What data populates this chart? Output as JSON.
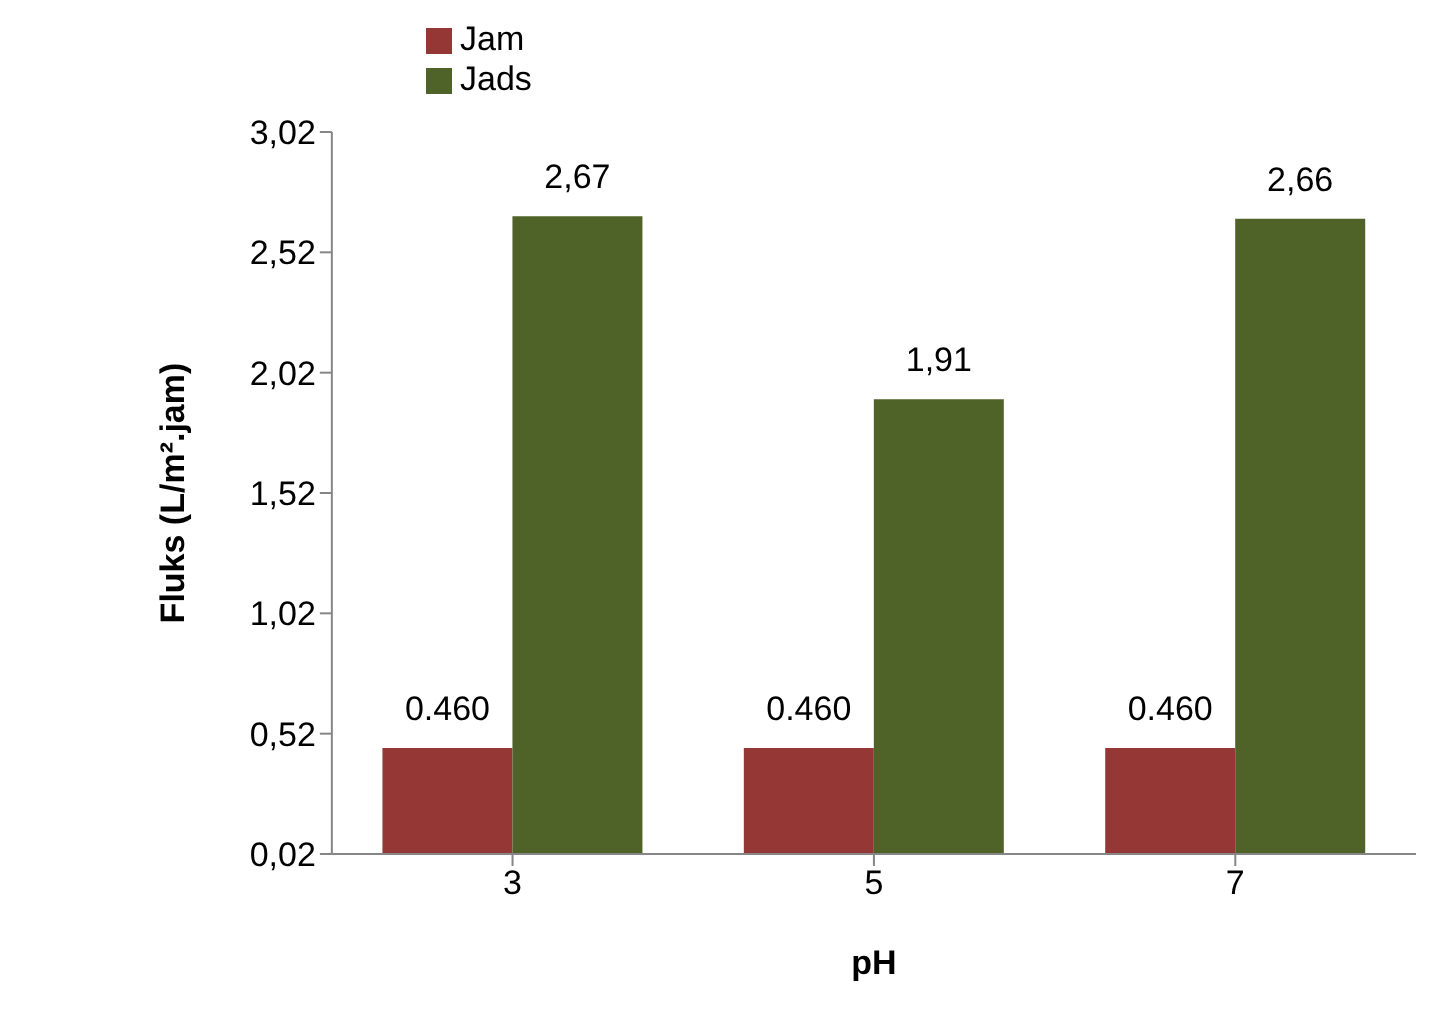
{
  "chart_data": {
    "type": "bar",
    "xlabel": "pH",
    "ylabel": "Fluks (L/m².jam)",
    "categories": [
      "3",
      "5",
      "7"
    ],
    "series": [
      {
        "name": "Jam",
        "color": "#953735",
        "values": [
          0.46,
          0.46,
          0.46
        ],
        "value_labels": [
          "0.460",
          "0.460",
          "0.460"
        ]
      },
      {
        "name": "Jads",
        "color": "#4f6228",
        "values": [
          2.67,
          1.91,
          2.66
        ],
        "value_labels": [
          "2,67",
          "1,91",
          "2,66"
        ]
      }
    ],
    "ylim": [
      0.02,
      3.02
    ],
    "yticks": [
      {
        "value": 0.02,
        "label": "0,02"
      },
      {
        "value": 0.52,
        "label": "0,52"
      },
      {
        "value": 1.02,
        "label": "1,02"
      },
      {
        "value": 1.52,
        "label": "1,52"
      },
      {
        "value": 2.02,
        "label": "2,02"
      },
      {
        "value": 2.52,
        "label": "2,52"
      },
      {
        "value": 3.02,
        "label": "3,02"
      }
    ],
    "grid": false,
    "legend": "top"
  }
}
